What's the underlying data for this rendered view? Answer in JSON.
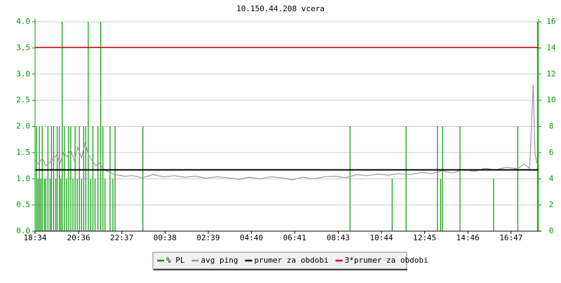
{
  "chart_data": {
    "type": "line",
    "title": "10.150.44.208 vcera",
    "xlim": [
      0,
      1410
    ],
    "xticks": [
      {
        "value": 0,
        "label": "18:34"
      },
      {
        "value": 122,
        "label": "20:36"
      },
      {
        "value": 243,
        "label": "22:37"
      },
      {
        "value": 364,
        "label": "00:38"
      },
      {
        "value": 485,
        "label": "02:39"
      },
      {
        "value": 606,
        "label": "04:40"
      },
      {
        "value": 727,
        "label": "06:41"
      },
      {
        "value": 849,
        "label": "08:43"
      },
      {
        "value": 970,
        "label": "10:44"
      },
      {
        "value": 1091,
        "label": "12:45"
      },
      {
        "value": 1212,
        "label": "14:46"
      },
      {
        "value": 1333,
        "label": "16:47"
      }
    ],
    "ylim": [
      0,
      4
    ],
    "yticks": [
      {
        "value": 0,
        "label": "0.0"
      },
      0.5,
      {
        "value": 1,
        "label": "1.0"
      },
      1.5,
      {
        "value": 2,
        "label": "2.0"
      },
      2.5,
      {
        "value": 3,
        "label": "3.0"
      },
      3.5,
      {
        "value": 4,
        "label": "4.0"
      }
    ],
    "y2lim": [
      0,
      16
    ],
    "y2ticks": [
      0,
      2,
      4,
      6,
      8,
      10,
      12,
      14,
      16
    ],
    "grid": true,
    "series": [
      {
        "name": "% PL",
        "color": "#009900",
        "kind": "bar",
        "axis": "y2",
        "x": [
          4,
          8,
          12,
          16,
          20,
          26,
          30,
          36,
          42,
          46,
          52,
          58,
          62,
          68,
          72,
          76,
          82,
          88,
          94,
          100,
          106,
          112,
          118,
          124,
          130,
          136,
          142,
          149,
          156,
          162,
          168,
          176,
          184,
          190,
          196,
          210,
          218,
          224,
          302,
          882,
          1000,
          1039,
          1127,
          1136,
          1141,
          1190,
          1284,
          1352,
          1407
        ],
        "values": [
          8,
          4,
          8,
          4,
          8,
          4,
          4,
          8,
          4,
          8,
          8,
          4,
          8,
          8,
          4,
          16,
          8,
          4,
          8,
          8,
          4,
          8,
          4,
          8,
          4,
          8,
          8,
          16,
          4,
          8,
          4,
          8,
          16,
          8,
          4,
          8,
          4,
          8,
          8,
          8,
          4,
          8,
          8,
          4,
          8,
          8,
          4,
          8,
          16
        ]
      },
      {
        "name": "avg ping",
        "color": "#999999",
        "kind": "line",
        "x": [
          0,
          10,
          20,
          30,
          40,
          50,
          60,
          70,
          80,
          90,
          100,
          110,
          120,
          130,
          140,
          150,
          160,
          170,
          180,
          190,
          200,
          210,
          225,
          250,
          275,
          300,
          330,
          360,
          390,
          420,
          450,
          480,
          510,
          540,
          570,
          600,
          630,
          660,
          690,
          720,
          750,
          780,
          810,
          840,
          870,
          900,
          930,
          960,
          990,
          1020,
          1050,
          1080,
          1110,
          1140,
          1170,
          1200,
          1230,
          1260,
          1290,
          1320,
          1350,
          1370,
          1385,
          1395,
          1400,
          1405,
          1410
        ],
        "values": [
          1.35,
          1.28,
          1.4,
          1.25,
          1.3,
          1.38,
          1.45,
          1.3,
          1.5,
          1.42,
          1.55,
          1.35,
          1.6,
          1.4,
          1.68,
          1.45,
          1.35,
          1.25,
          1.3,
          1.2,
          1.15,
          1.12,
          1.08,
          1.05,
          1.06,
          1.02,
          1.08,
          1.04,
          1.06,
          1.03,
          1.05,
          1.01,
          1.04,
          1.02,
          0.99,
          1.03,
          1.0,
          1.04,
          1.02,
          0.98,
          1.03,
          1.0,
          1.04,
          1.05,
          1.02,
          1.08,
          1.06,
          1.09,
          1.07,
          1.1,
          1.08,
          1.12,
          1.1,
          1.15,
          1.11,
          1.18,
          1.14,
          1.2,
          1.17,
          1.22,
          1.19,
          1.28,
          1.2,
          2.8,
          1.5,
          1.3,
          1.25
        ]
      },
      {
        "name": "prumer za obdobi",
        "color": "#000000",
        "kind": "hline",
        "value": 1.17
      },
      {
        "name": "3*prumer za obdobi",
        "color": "#cc0000",
        "kind": "hline",
        "value": 3.51
      }
    ]
  }
}
